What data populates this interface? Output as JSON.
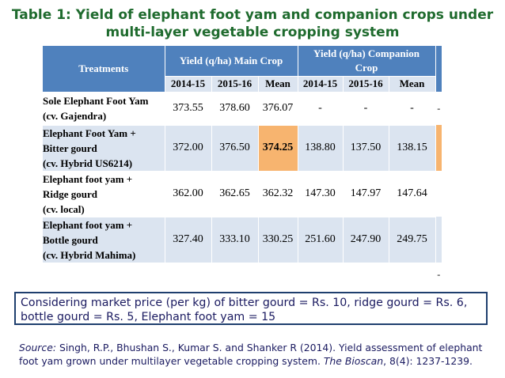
{
  "title": {
    "line1": "Table 1: Yield of elephant foot yam and companion crops under",
    "line2": "multi-layer vegetable cropping system"
  },
  "table": {
    "treatments_header": "Treatments",
    "main_crop_header": "Yield (q/ha) Main Crop",
    "companion_header_line1": "Yield (q/ha) Companion",
    "companion_header_line2": "Crop",
    "subheaders": [
      "2014-15",
      "2015-16",
      "Mean",
      "2014-15",
      "2015-16",
      "Mean"
    ],
    "rows": [
      {
        "treatment_lines": [
          "Sole Elephant Foot Yam",
          "(cv. Gajendra)"
        ],
        "values": [
          "373.55",
          "378.60",
          "376.07",
          "-",
          "-",
          "-"
        ],
        "side": "-"
      },
      {
        "treatment_lines": [
          "Elephant Foot Yam +",
          "Bitter gourd",
          "(cv. Hybrid US6214)"
        ],
        "values": [
          "372.00",
          "376.50",
          "374.25",
          "138.80",
          "137.50",
          "138.15"
        ],
        "side": ""
      },
      {
        "treatment_lines": [
          "Elephant foot yam +",
          "Ridge gourd",
          "(cv. local)"
        ],
        "values": [
          "362.00",
          "362.65",
          "362.32",
          "147.30",
          "147.97",
          "147.64"
        ],
        "side": ""
      },
      {
        "treatment_lines": [
          "Elephant foot yam +",
          "Bottle gourd",
          "(cv. Hybrid Mahima)"
        ],
        "values": [
          "327.40",
          "333.10",
          "330.25",
          "251.60",
          "247.90",
          "249.75"
        ],
        "side": ""
      }
    ],
    "empty_row_side": "-"
  },
  "note": {
    "line1": "Considering market price (per kg) of bitter gourd = Rs. 10, ridge gourd = Rs. 6,",
    "line2": "bottle gourd = Rs. 5, Elephant foot yam = 15"
  },
  "source": {
    "label": "Source:",
    "text1": " Singh, R.P., Bhushan S., Kumar S. and Shanker R (2014). Yield assessment of elephant",
    "text2": "foot yam grown under multilayer vegetable cropping system. ",
    "journal": "The Bioscan",
    "text3": ", 8(4): 1237-1239."
  },
  "colors": {
    "header_blue": "#4f81bd",
    "row_band": "#dbe4f0",
    "highlight": "#f7b46f",
    "title_green": "#1f6b2e",
    "text_navy": "#1a1a60"
  }
}
